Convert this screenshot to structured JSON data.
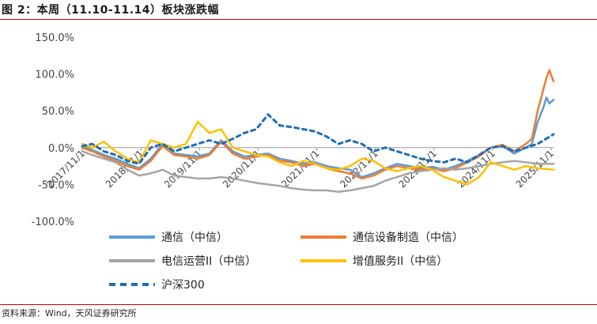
{
  "header": {
    "title": "图 2：本周（11.10-11.14）板块涨跌幅"
  },
  "footer": {
    "source": "资料来源：Wind，天风证券研究所"
  },
  "chart_data": {
    "type": "line",
    "title": "",
    "xlabel": "",
    "ylabel": "",
    "ylim": [
      -100,
      150
    ],
    "yticks": [
      "150.0%",
      "100.0%",
      "50.0%",
      "0.0%",
      "-50.0%",
      "-100.0%"
    ],
    "ytick_values": [
      150,
      100,
      50,
      0,
      -50,
      -100
    ],
    "xlim": [
      2017.83,
      2025.87
    ],
    "xtick_labels": [
      "2017/11/1",
      "2018/11/1",
      "2019/11/1",
      "2020/11/1",
      "2021/11/1",
      "2022/11/1",
      "2023/11/1",
      "2024/11/1",
      "2025/11/1"
    ],
    "xtick_values": [
      2017.83,
      2018.83,
      2019.83,
      2020.83,
      2021.83,
      2022.83,
      2023.83,
      2024.83,
      2025.83
    ],
    "grid": false,
    "legend_position": "bottom",
    "series": [
      {
        "name": "通信（中信）",
        "color": "#5b9bd5",
        "dash": "solid",
        "x": [
          2017.83,
          2018.0,
          2018.2,
          2018.4,
          2018.6,
          2018.8,
          2019.0,
          2019.2,
          2019.4,
          2019.6,
          2019.8,
          2020.0,
          2020.2,
          2020.4,
          2020.6,
          2020.8,
          2021.0,
          2021.2,
          2021.4,
          2021.6,
          2021.8,
          2022.0,
          2022.2,
          2022.4,
          2022.6,
          2022.8,
          2023.0,
          2023.2,
          2023.4,
          2023.6,
          2023.8,
          2024.0,
          2024.2,
          2024.4,
          2024.6,
          2024.8,
          2025.0,
          2025.2,
          2025.4,
          2025.5,
          2025.6,
          2025.7,
          2025.75,
          2025.8,
          2025.87
        ],
        "y": [
          2,
          -3,
          -10,
          -15,
          -22,
          -28,
          -15,
          5,
          -8,
          -10,
          -12,
          -8,
          10,
          -5,
          -12,
          -10,
          -8,
          -15,
          -18,
          -22,
          -20,
          -25,
          -28,
          -30,
          -40,
          -35,
          -28,
          -22,
          -25,
          -28,
          -26,
          -30,
          -25,
          -18,
          -10,
          0,
          2,
          -8,
          0,
          5,
          35,
          55,
          68,
          60,
          65
        ]
      },
      {
        "name": "通信设备制造（中信）",
        "color": "#ed7d31",
        "dash": "solid",
        "x": [
          2017.83,
          2018.0,
          2018.2,
          2018.4,
          2018.6,
          2018.8,
          2019.0,
          2019.2,
          2019.4,
          2019.6,
          2019.8,
          2020.0,
          2020.2,
          2020.4,
          2020.6,
          2020.8,
          2021.0,
          2021.2,
          2021.4,
          2021.6,
          2021.8,
          2022.0,
          2022.2,
          2022.4,
          2022.6,
          2022.8,
          2023.0,
          2023.2,
          2023.4,
          2023.6,
          2023.8,
          2024.0,
          2024.2,
          2024.4,
          2024.6,
          2024.8,
          2025.0,
          2025.2,
          2025.4,
          2025.5,
          2025.6,
          2025.7,
          2025.75,
          2025.8,
          2025.87
        ],
        "y": [
          0,
          -5,
          -12,
          -18,
          -25,
          -30,
          -18,
          2,
          -10,
          -12,
          -15,
          -10,
          8,
          -8,
          -15,
          -12,
          -10,
          -18,
          -20,
          -25,
          -22,
          -28,
          -32,
          -35,
          -42,
          -38,
          -30,
          -25,
          -28,
          -30,
          -28,
          -32,
          -28,
          -20,
          -12,
          0,
          4,
          -5,
          5,
          12,
          50,
          80,
          95,
          105,
          90
        ]
      },
      {
        "name": "电信运营II（中信）",
        "color": "#a5a5a5",
        "dash": "solid",
        "x": [
          2017.83,
          2018.0,
          2018.2,
          2018.4,
          2018.6,
          2018.8,
          2019.0,
          2019.2,
          2019.4,
          2019.6,
          2019.8,
          2020.0,
          2020.2,
          2020.4,
          2020.6,
          2020.8,
          2021.0,
          2021.2,
          2021.4,
          2021.6,
          2021.8,
          2022.0,
          2022.2,
          2022.4,
          2022.6,
          2022.8,
          2023.0,
          2023.2,
          2023.4,
          2023.6,
          2023.8,
          2024.0,
          2024.2,
          2024.4,
          2024.6,
          2024.8,
          2025.0,
          2025.2,
          2025.4,
          2025.6,
          2025.87
        ],
        "y": [
          -5,
          -10,
          -15,
          -20,
          -30,
          -38,
          -35,
          -30,
          -38,
          -40,
          -42,
          -42,
          -40,
          -42,
          -45,
          -48,
          -50,
          -52,
          -55,
          -57,
          -58,
          -58,
          -60,
          -58,
          -55,
          -52,
          -45,
          -40,
          -35,
          -32,
          -30,
          -28,
          -30,
          -28,
          -25,
          -22,
          -20,
          -18,
          -20,
          -22,
          -22
        ]
      },
      {
        "name": "增值服务II（中信）",
        "color": "#ffc000",
        "dash": "solid",
        "x": [
          2017.83,
          2018.0,
          2018.2,
          2018.4,
          2018.6,
          2018.8,
          2019.0,
          2019.2,
          2019.4,
          2019.6,
          2019.8,
          2020.0,
          2020.2,
          2020.4,
          2020.6,
          2020.8,
          2021.0,
          2021.2,
          2021.4,
          2021.6,
          2021.8,
          2022.0,
          2022.2,
          2022.4,
          2022.6,
          2022.8,
          2023.0,
          2023.2,
          2023.4,
          2023.6,
          2023.8,
          2024.0,
          2024.2,
          2024.4,
          2024.6,
          2024.8,
          2025.0,
          2025.2,
          2025.4,
          2025.6,
          2025.87
        ],
        "y": [
          5,
          0,
          8,
          -5,
          -15,
          -20,
          10,
          5,
          0,
          5,
          35,
          20,
          25,
          0,
          -5,
          -10,
          -12,
          -20,
          -25,
          -18,
          -22,
          -28,
          -30,
          -25,
          -15,
          -18,
          -28,
          -32,
          -28,
          -25,
          -30,
          -40,
          -45,
          -50,
          -40,
          -20,
          -25,
          -30,
          -25,
          -28,
          -30
        ]
      },
      {
        "name": "沪深300",
        "color": "#1f6eb5",
        "dash": "dashed",
        "x": [
          2017.83,
          2018.0,
          2018.2,
          2018.4,
          2018.6,
          2018.8,
          2019.0,
          2019.2,
          2019.4,
          2019.6,
          2019.8,
          2020.0,
          2020.2,
          2020.4,
          2020.6,
          2020.8,
          2021.0,
          2021.2,
          2021.4,
          2021.6,
          2021.8,
          2022.0,
          2022.2,
          2022.4,
          2022.6,
          2022.8,
          2023.0,
          2023.2,
          2023.4,
          2023.6,
          2023.8,
          2024.0,
          2024.2,
          2024.4,
          2024.6,
          2024.8,
          2025.0,
          2025.2,
          2025.4,
          2025.6,
          2025.87
        ],
        "y": [
          2,
          5,
          -5,
          -10,
          -18,
          -22,
          0,
          5,
          -5,
          0,
          5,
          10,
          5,
          12,
          20,
          25,
          45,
          30,
          28,
          25,
          22,
          15,
          5,
          10,
          5,
          -5,
          0,
          -5,
          -10,
          -15,
          -18,
          -20,
          -15,
          -20,
          -10,
          0,
          2,
          -5,
          0,
          5,
          18
        ]
      }
    ]
  }
}
